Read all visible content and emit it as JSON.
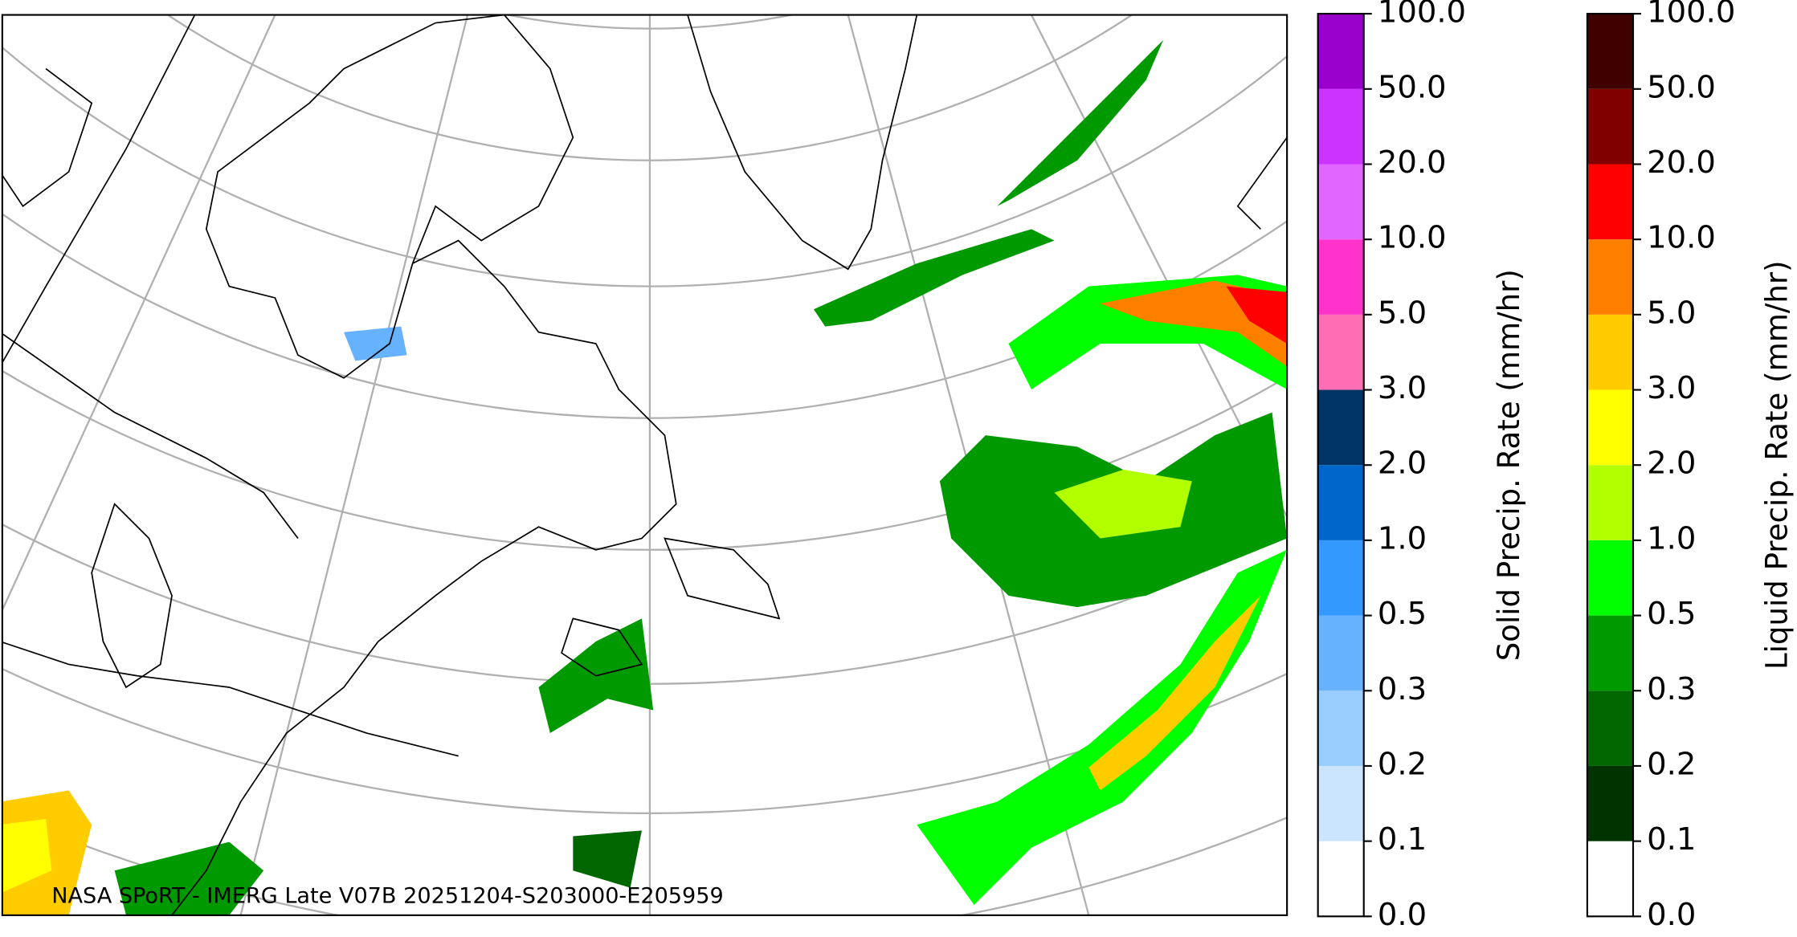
{
  "map": {
    "caption": "NASA SPoRT - IMERG Late V07B 20251204-S203000-E205959"
  },
  "colorbars": [
    {
      "label": "Solid Precip. Rate (mm/hr)",
      "ticks": [
        "0.0",
        "0.1",
        "0.2",
        "0.3",
        "0.5",
        "1.0",
        "2.0",
        "3.0",
        "5.0",
        "10.0",
        "20.0",
        "50.0",
        "100.0"
      ],
      "colors": [
        "#ffffff",
        "#cce5ff",
        "#99ccff",
        "#66b2ff",
        "#3399ff",
        "#0066cc",
        "#003366",
        "#ff6eb4",
        "#ff33cc",
        "#e066ff",
        "#cc33ff",
        "#9900cc"
      ]
    },
    {
      "label": "Liquid Precip. Rate (mm/hr)",
      "ticks": [
        "0.0",
        "0.1",
        "0.2",
        "0.3",
        "0.5",
        "1.0",
        "2.0",
        "3.0",
        "5.0",
        "10.0",
        "20.0",
        "50.0",
        "100.0"
      ],
      "colors": [
        "#ffffff",
        "#003300",
        "#006600",
        "#009900",
        "#00ff00",
        "#b2ff00",
        "#ffff00",
        "#ffcc00",
        "#ff8000",
        "#ff0000",
        "#800000",
        "#400000"
      ]
    }
  ]
}
